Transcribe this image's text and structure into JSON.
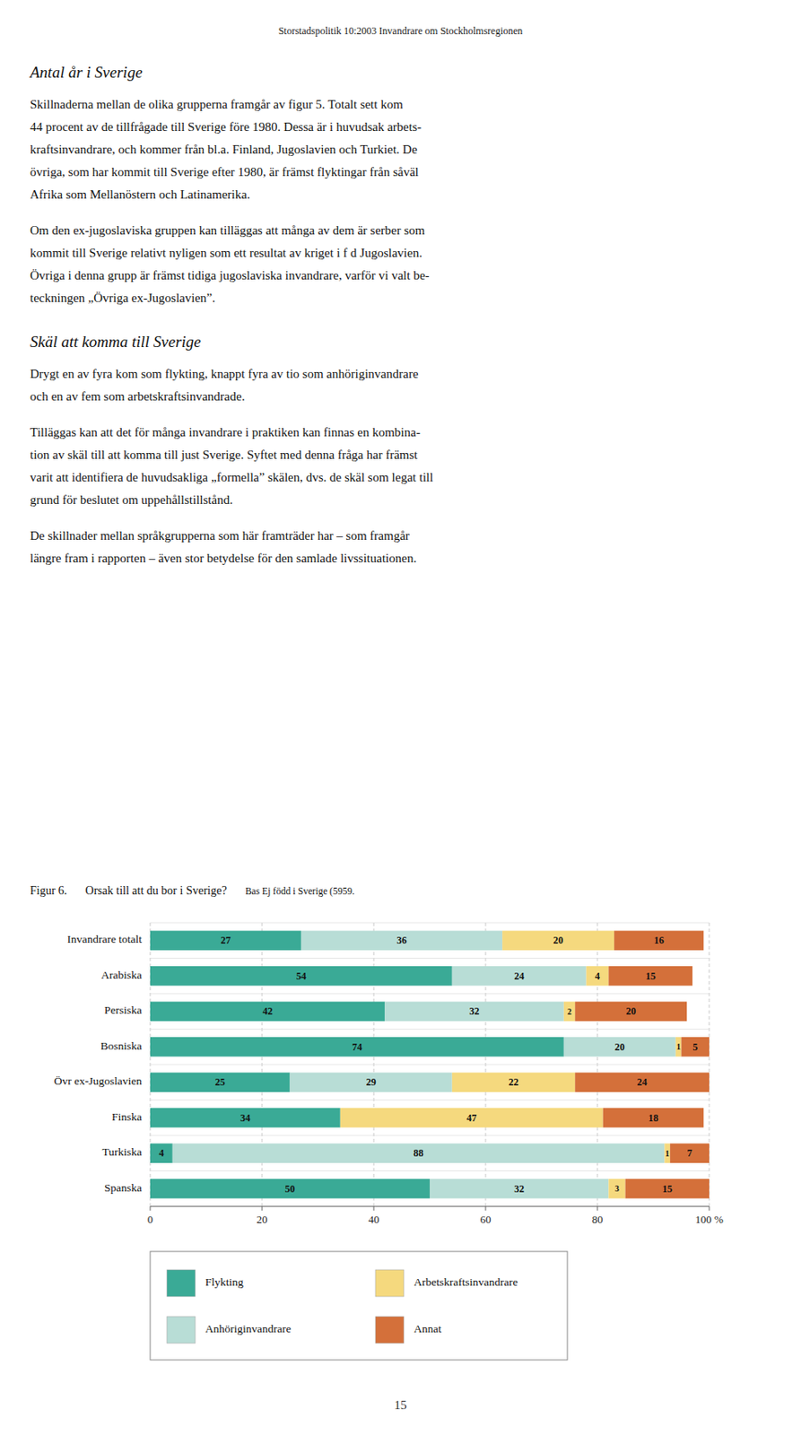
{
  "page": {
    "page_title": "Storstadspolitik 10:2003 Invandrare om Stockholmsregionen",
    "heading1": "Antal år i Sverige",
    "para1_lines": [
      "Skillnaderna mellan de olika grupperna framgår av figur 5. Totalt sett kom",
      "44 procent av de tillfrågade till Sverige före 1980. Dessa är i huvudsak arbets-",
      "kraftsinvandrare, och kommer från bl.a. Finland, Jugoslavien och Turkiet. De",
      "övriga, som har kommit till Sverige efter 1980, är främst flyktingar från såväl",
      "Afrika som Mellanöstern och Latinamerika."
    ],
    "para2_lines": [
      "Om den ex-jugoslaviska gruppen kan tilläggas att många av dem är serber som",
      "kommit till Sverige relativt nyligen som ett resultat av kriget i f d Jugoslavien.",
      "Övriga i denna grupp är främst tidiga jugoslaviska invandrare, varför vi valt be-",
      "teckningen „Övriga ex-Jugoslavien”."
    ],
    "heading2": "Skäl att komma till Sverige",
    "para3_lines": [
      "Drygt en av fyra kom som flykting, knappt fyra av tio som anhöriginvandrare",
      "och en av fem som arbetskraftsinvandrade."
    ],
    "para4_lines": [
      "Tilläggas kan att det för många invandrare i praktiken kan finnas en kombina-",
      "tion av skäl till att komma till just Sverige. Syftet med denna fråga har främst",
      "varit att identifiera de huvudsakliga „formella” skälen, dvs. de skäl som legat till",
      "grund för beslutet om uppehållstillstånd."
    ],
    "para5_lines": [
      "De skillnader mellan språkgrupperna som här framträder har – som framgår",
      "längre fram i rapporten – även stor betydelse för den samlade livssituationen."
    ],
    "page_number": "15"
  },
  "chart_data": {
    "type": "bar",
    "orientation": "horizontal",
    "stacked": true,
    "data_labels": true,
    "grid": true,
    "title": "Orsak till att du bor i Sverige?",
    "subtitle": "Bas Ej född i Sverige (5959.",
    "annotations": [
      "Figur 6."
    ],
    "categories": [
      "Invandrare totalt",
      "Arabiska",
      "Persiska",
      "Bosniska",
      "Övr ex-Jugoslavien",
      "Finska",
      "Turkiska",
      "Spanska"
    ],
    "series": [
      {
        "name": "Flykting",
        "color": "#3aaa96",
        "values": [
          27,
          54,
          42,
          74,
          25,
          34,
          4,
          50
        ]
      },
      {
        "name": "Anhöriginvandrare",
        "color": "#b8ddd6",
        "values": [
          36,
          24,
          32,
          20,
          29,
          0,
          88,
          32
        ]
      },
      {
        "name": "Arbetskraftsinvandrare",
        "color": "#f5d97e",
        "values": [
          20,
          4,
          2,
          1,
          22,
          47,
          1,
          3
        ]
      },
      {
        "name": "Annat",
        "color": "#d4703a",
        "values": [
          16,
          15,
          20,
          5,
          24,
          18,
          7,
          15
        ]
      }
    ],
    "xlim": [
      0,
      100
    ],
    "xticks": [
      0,
      20,
      40,
      60,
      80,
      {
        "value": 100,
        "label": "100 %"
      }
    ]
  }
}
